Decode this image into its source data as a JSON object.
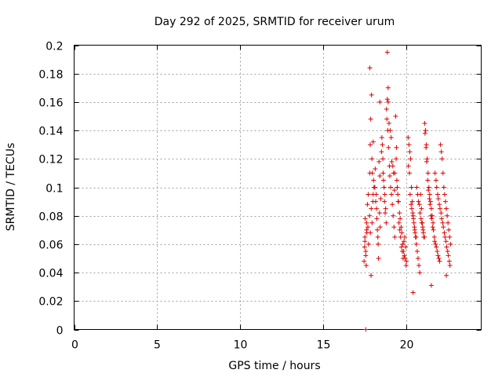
{
  "chart_data": {
    "type": "scatter",
    "title": "Day 292 of 2025, SRMTID for receiver urum",
    "xlabel": "GPS time / hours",
    "ylabel": "SRMTID / TECUs",
    "xlim": [
      0,
      24.5
    ],
    "ylim": [
      0,
      0.2
    ],
    "xticks": [
      0,
      5,
      10,
      15,
      20
    ],
    "xtick_labels": [
      "0",
      "5",
      "10",
      "15",
      "20"
    ],
    "yticks": [
      0,
      0.02,
      0.04,
      0.06,
      0.08,
      0.1,
      0.12,
      0.14,
      0.16,
      0.18,
      0.2
    ],
    "ytick_labels": [
      "0",
      "0.02",
      "0.04",
      "0.06",
      "0.08",
      "0.1",
      "0.12",
      "0.14",
      "0.16",
      "0.18",
      "0.2"
    ],
    "grid": true,
    "marker": "+",
    "color": "#e00000",
    "series": [
      {
        "name": "SRMTID",
        "x": [
          17.5,
          17.55,
          17.6,
          17.45,
          17.65,
          17.5,
          17.7,
          17.55,
          17.6,
          17.48,
          17.62,
          17.58,
          17.52,
          17.68,
          17.72,
          17.8,
          17.85,
          17.9,
          17.82,
          17.95,
          18.0,
          17.88,
          17.78,
          17.92,
          18.05,
          17.98,
          17.83,
          17.93,
          18.02,
          17.87,
          18.1,
          18.15,
          18.2,
          18.25,
          18.3,
          18.12,
          18.18,
          18.22,
          18.28,
          18.35,
          18.4,
          18.45,
          18.38,
          18.32,
          18.42,
          18.5,
          18.55,
          18.6,
          18.65,
          18.7,
          18.75,
          18.8,
          18.85,
          18.9,
          18.95,
          18.52,
          18.58,
          18.62,
          18.68,
          18.72,
          18.78,
          18.82,
          18.88,
          18.92,
          18.98,
          19.0,
          19.05,
          19.1,
          19.15,
          19.2,
          19.25,
          19.3,
          19.02,
          19.08,
          19.12,
          19.18,
          19.22,
          19.28,
          19.35,
          19.4,
          19.45,
          19.5,
          19.55,
          19.6,
          19.65,
          19.7,
          19.75,
          19.8,
          19.85,
          19.9,
          19.95,
          20.0,
          19.38,
          19.42,
          19.48,
          19.52,
          19.58,
          19.62,
          19.68,
          19.72,
          19.78,
          19.82,
          19.88,
          19.92,
          19.98,
          20.1,
          20.15,
          20.2,
          20.25,
          20.3,
          20.35,
          20.4,
          20.45,
          20.5,
          20.55,
          20.6,
          20.65,
          20.7,
          20.75,
          20.8,
          20.85,
          20.9,
          20.95,
          21.0,
          21.05,
          20.12,
          20.18,
          20.22,
          20.28,
          20.32,
          20.38,
          20.42,
          20.48,
          20.52,
          20.58,
          20.62,
          20.68,
          20.72,
          20.78,
          20.82,
          20.88,
          20.92,
          20.98,
          21.02,
          21.08,
          21.1,
          21.15,
          21.2,
          21.25,
          21.3,
          21.35,
          21.4,
          21.45,
          21.5,
          21.55,
          21.6,
          21.12,
          21.18,
          21.22,
          21.28,
          21.32,
          21.38,
          21.42,
          21.48,
          21.52,
          21.58,
          21.62,
          21.68,
          21.7,
          21.75,
          21.8,
          21.85,
          21.9,
          21.95,
          22.0,
          22.05,
          22.1,
          22.15,
          22.2,
          22.25,
          22.3,
          22.35,
          22.4,
          22.45,
          22.5,
          22.55,
          22.6,
          22.65,
          21.72,
          21.78,
          21.82,
          21.88,
          21.92,
          21.98,
          22.02,
          22.08,
          22.12,
          22.18,
          22.22,
          22.28,
          22.32,
          22.38,
          22.42,
          22.48,
          22.52,
          22.58,
          22.62,
          18.85,
          18.4,
          18.0,
          17.8,
          18.9,
          19.3,
          20.4,
          21.5,
          22.4,
          17.55
        ],
        "y": [
          0.065,
          0.055,
          0.075,
          0.048,
          0.088,
          0.062,
          0.095,
          0.052,
          0.07,
          0.058,
          0.068,
          0.045,
          0.078,
          0.072,
          0.06,
          0.184,
          0.148,
          0.165,
          0.13,
          0.11,
          0.095,
          0.085,
          0.08,
          0.12,
          0.1,
          0.09,
          0.068,
          0.075,
          0.105,
          0.038,
          0.1,
          0.09,
          0.085,
          0.07,
          0.06,
          0.113,
          0.095,
          0.078,
          0.065,
          0.118,
          0.108,
          0.092,
          0.082,
          0.05,
          0.072,
          0.125,
          0.13,
          0.11,
          0.1,
          0.095,
          0.085,
          0.155,
          0.162,
          0.16,
          0.145,
          0.135,
          0.12,
          0.105,
          0.09,
          0.082,
          0.075,
          0.148,
          0.14,
          0.128,
          0.115,
          0.108,
          0.1,
          0.095,
          0.088,
          0.08,
          0.072,
          0.065,
          0.14,
          0.135,
          0.118,
          0.115,
          0.11,
          0.098,
          0.15,
          0.128,
          0.1,
          0.09,
          0.075,
          0.07,
          0.065,
          0.058,
          0.055,
          0.05,
          0.062,
          0.065,
          0.058,
          0.048,
          0.12,
          0.105,
          0.095,
          0.09,
          0.082,
          0.078,
          0.072,
          0.068,
          0.06,
          0.055,
          0.052,
          0.05,
          0.045,
          0.135,
          0.13,
          0.125,
          0.12,
          0.1,
          0.09,
          0.08,
          0.075,
          0.07,
          0.065,
          0.06,
          0.055,
          0.05,
          0.045,
          0.04,
          0.095,
          0.085,
          0.075,
          0.07,
          0.065,
          0.115,
          0.11,
          0.095,
          0.088,
          0.085,
          0.082,
          0.078,
          0.072,
          0.068,
          0.065,
          0.1,
          0.095,
          0.09,
          0.088,
          0.082,
          0.078,
          0.075,
          0.072,
          0.068,
          0.065,
          0.145,
          0.14,
          0.13,
          0.12,
          0.11,
          0.1,
          0.095,
          0.09,
          0.085,
          0.08,
          0.075,
          0.138,
          0.128,
          0.118,
          0.105,
          0.098,
          0.092,
          0.088,
          0.08,
          0.078,
          0.072,
          0.07,
          0.065,
          0.062,
          0.06,
          0.058,
          0.055,
          0.052,
          0.05,
          0.048,
          0.13,
          0.125,
          0.12,
          0.11,
          0.1,
          0.095,
          0.09,
          0.085,
          0.08,
          0.075,
          0.07,
          0.065,
          0.06,
          0.11,
          0.105,
          0.1,
          0.095,
          0.092,
          0.088,
          0.085,
          0.082,
          0.078,
          0.075,
          0.072,
          0.068,
          0.065,
          0.062,
          0.058,
          0.055,
          0.052,
          0.048,
          0.045,
          0.195,
          0.16,
          0.132,
          0.11,
          0.17,
          0.11,
          0.026,
          0.031,
          0.038,
          0.0
        ]
      }
    ]
  }
}
